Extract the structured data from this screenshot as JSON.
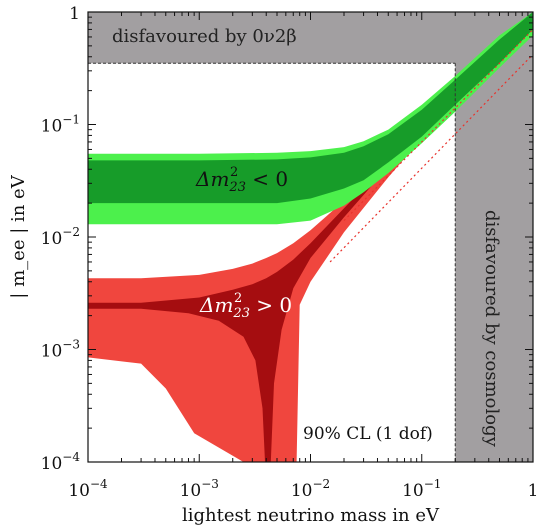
{
  "chart_data": {
    "type": "area",
    "xlabel": "lightest neutrino mass in eV",
    "ylabel": "| m_ee | in eV",
    "x_scale": "log",
    "y_scale": "log",
    "xlim": [
      0.0001,
      1
    ],
    "ylim": [
      0.0001,
      1
    ],
    "x_ticks": [
      {
        "value": 0.0001,
        "base": "10",
        "exp": "−4"
      },
      {
        "value": 0.001,
        "base": "10",
        "exp": "−3"
      },
      {
        "value": 0.01,
        "base": "10",
        "exp": "−2"
      },
      {
        "value": 0.1,
        "base": "10",
        "exp": "−1"
      },
      {
        "value": 1,
        "base": "1",
        "exp": ""
      }
    ],
    "y_ticks": [
      {
        "value": 0.0001,
        "base": "10",
        "exp": "−4"
      },
      {
        "value": 0.001,
        "base": "10",
        "exp": "−3"
      },
      {
        "value": 0.01,
        "base": "10",
        "exp": "−2"
      },
      {
        "value": 0.1,
        "base": "10",
        "exp": "−1"
      },
      {
        "value": 1,
        "base": "1",
        "exp": ""
      }
    ],
    "grid": false,
    "excluded_regions": [
      {
        "label": "disfavoured by 0ν2β",
        "y_min": 0.35,
        "y_max": 1,
        "x_min": 0.0001,
        "x_max": 1
      },
      {
        "label": "disfavoured by cosmology",
        "x_min": 0.2,
        "x_max": 1,
        "y_min": 0.0001,
        "y_max": 1
      }
    ],
    "bands": [
      {
        "ordering": "inverted",
        "label_symbol": "Δm",
        "label_sub": "23",
        "label_sup": "2",
        "label_relation": "<  0",
        "color_outer": "#4cf04c",
        "color_inner": "#179c29",
        "x": [
          0.0001,
          0.001,
          0.005,
          0.01,
          0.02,
          0.03,
          0.05,
          0.1,
          0.2,
          0.5,
          1
        ],
        "outer_upper": [
          0.055,
          0.055,
          0.056,
          0.058,
          0.063,
          0.071,
          0.09,
          0.15,
          0.27,
          0.62,
          1.15
        ],
        "inner_upper": [
          0.048,
          0.048,
          0.049,
          0.051,
          0.056,
          0.064,
          0.082,
          0.135,
          0.25,
          0.57,
          1.05
        ],
        "inner_lower": [
          0.02,
          0.02,
          0.02,
          0.022,
          0.027,
          0.032,
          0.046,
          0.078,
          0.15,
          0.35,
          0.7
        ],
        "outer_lower": [
          0.013,
          0.013,
          0.013,
          0.014,
          0.019,
          0.025,
          0.037,
          0.068,
          0.13,
          0.32,
          0.62
        ]
      },
      {
        "ordering": "normal",
        "label_symbol": "Δm",
        "label_sub": "23",
        "label_sup": "2",
        "label_relation": ">  0",
        "color_outer": "#f0463e",
        "color_inner": "#a50d10",
        "x": [
          0.0001,
          0.0003,
          0.001,
          0.002,
          0.003,
          0.004,
          0.005,
          0.007,
          0.01,
          0.02,
          0.05,
          0.1,
          0.2,
          0.5,
          1
        ],
        "outer_upper": [
          0.0043,
          0.0043,
          0.0046,
          0.0052,
          0.0058,
          0.0065,
          0.0072,
          0.0088,
          0.0115,
          0.021,
          0.05,
          0.1,
          0.2,
          0.5,
          1
        ],
        "inner_upper": [
          0.0026,
          0.0026,
          0.0029,
          0.0034,
          0.0038,
          0.0043,
          0.0049,
          0.0063,
          0.0088,
          0.018,
          0.046,
          0.094,
          0.19,
          0.47,
          0.95
        ]
      }
    ],
    "annotations": [
      {
        "text": "90% CL (1 dof)"
      }
    ]
  }
}
